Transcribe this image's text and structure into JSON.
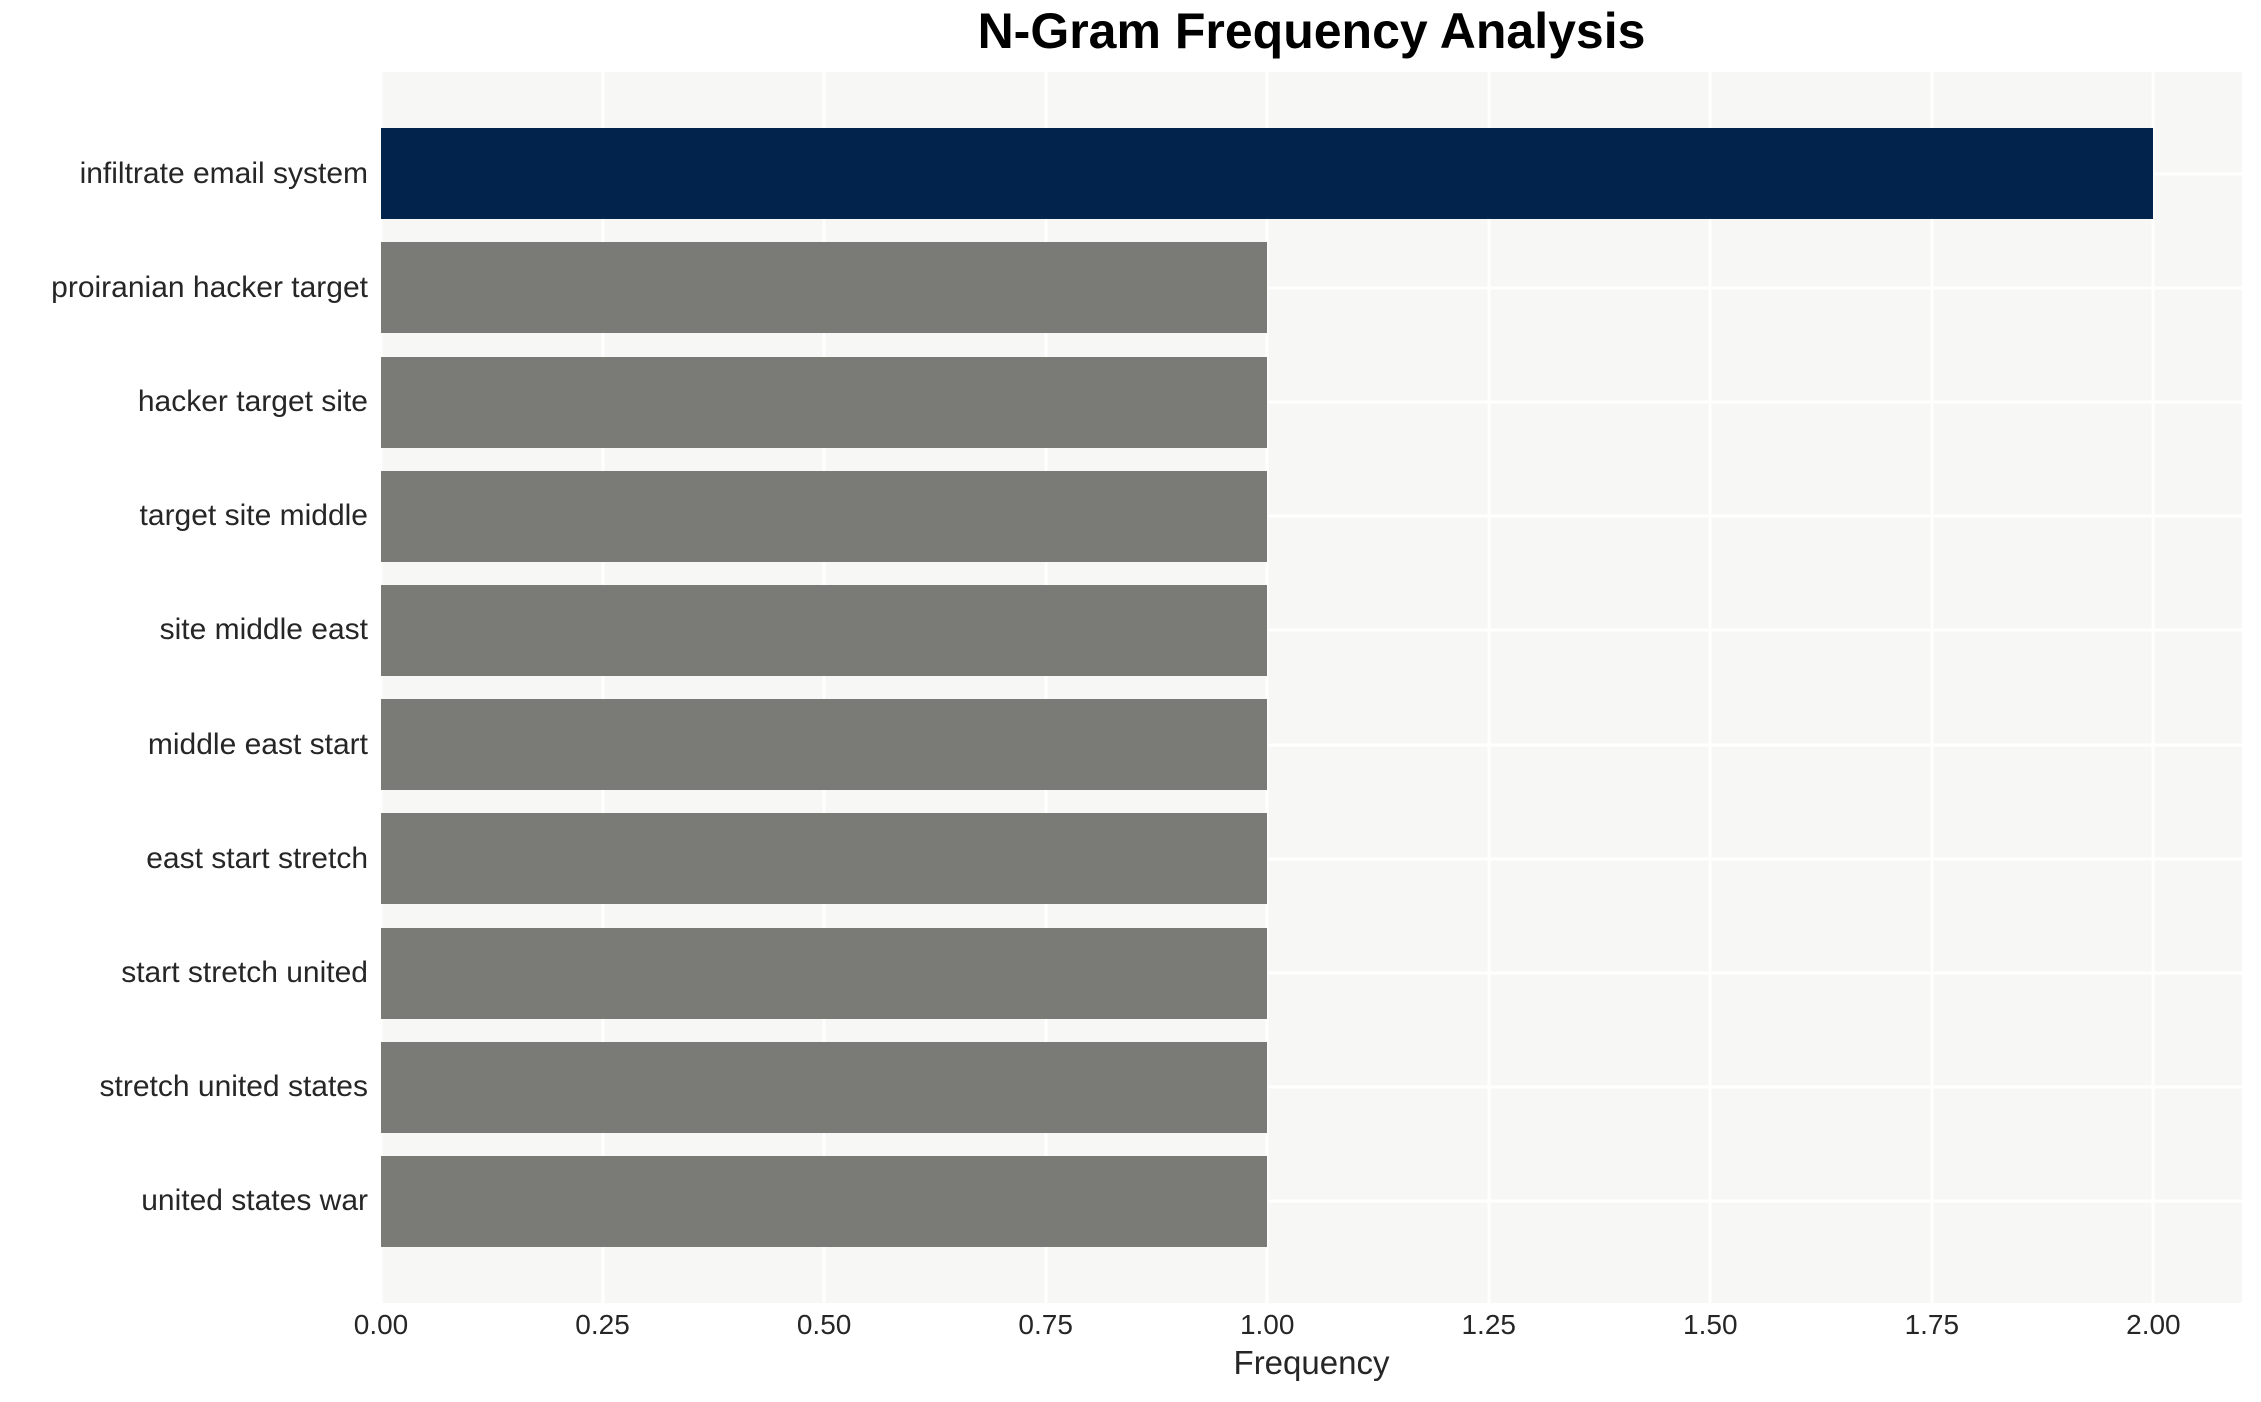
{
  "chart_data": {
    "type": "bar",
    "orientation": "horizontal",
    "title": "N-Gram Frequency Analysis",
    "xlabel": "Frequency",
    "ylabel": "",
    "categories": [
      "infiltrate email system",
      "proiranian hacker target",
      "hacker target site",
      "target site middle",
      "site middle east",
      "middle east start",
      "east start stretch",
      "start stretch united",
      "stretch united states",
      "united states war"
    ],
    "values": [
      2,
      1,
      1,
      1,
      1,
      1,
      1,
      1,
      1,
      1
    ],
    "bar_colors": [
      "#02234c",
      "#7a7a76",
      "#7a7a76",
      "#7a7a76",
      "#7a7a76",
      "#7a7a76",
      "#7a7a76",
      "#7a7a76",
      "#7a7a76",
      "#7a7a76"
    ],
    "xlim": [
      0,
      2.1
    ],
    "xticks": [
      0,
      0.25,
      0.5,
      0.75,
      1.0,
      1.25,
      1.5,
      1.75,
      2.0
    ],
    "xtick_labels": [
      "0.00",
      "0.25",
      "0.50",
      "0.75",
      "1.00",
      "1.25",
      "1.50",
      "1.75",
      "2.00"
    ],
    "grid": true,
    "legend": false,
    "colors": {
      "highlight_bar": "#02234c",
      "default_bar": "#7a7a76",
      "plot_background": "#f7f7f6",
      "gridline": "#ffffff",
      "text": "#262626",
      "title_text": "#000000",
      "figure_background": "#ffffff"
    }
  }
}
